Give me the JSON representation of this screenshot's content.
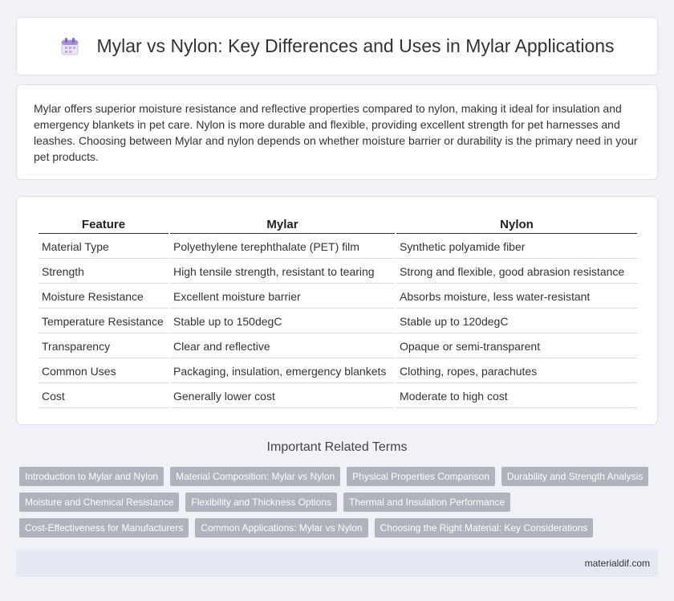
{
  "header": {
    "title": "Mylar vs Nylon: Key Differences and Uses in Mylar Applications",
    "icon": "calendar-icon"
  },
  "intro": {
    "text": "Mylar offers superior moisture resistance and reflective properties compared to nylon, making it ideal for insulation and emergency blankets in pet care. Nylon is more durable and flexible, providing excellent strength for pet harnesses and leashes. Choosing between Mylar and nylon depends on whether moisture barrier or durability is the primary need in your pet products."
  },
  "table": {
    "headers": [
      "Feature",
      "Mylar",
      "Nylon"
    ],
    "rows": [
      [
        "Material Type",
        "Polyethylene terephthalate (PET) film",
        "Synthetic polyamide fiber"
      ],
      [
        "Strength",
        "High tensile strength, resistant to tearing",
        "Strong and flexible, good abrasion resistance"
      ],
      [
        "Moisture Resistance",
        "Excellent moisture barrier",
        "Absorbs moisture, less water-resistant"
      ],
      [
        "Temperature Resistance",
        "Stable up to 150degC",
        "Stable up to 120degC"
      ],
      [
        "Transparency",
        "Clear and reflective",
        "Opaque or semi-transparent"
      ],
      [
        "Common Uses",
        "Packaging, insulation, emergency blankets",
        "Clothing, ropes, parachutes"
      ],
      [
        "Cost",
        "Generally lower cost",
        "Moderate to high cost"
      ]
    ]
  },
  "related": {
    "title": "Important Related Terms",
    "rows": [
      [
        "Introduction to Mylar and Nylon",
        "Material Composition: Mylar vs Nylon",
        "Physical Properties Comparison",
        "Durability and Strength Analysis"
      ],
      [
        "Moisture and Chemical Resistance",
        "Flexibility and Thickness Options",
        "Thermal and Insulation Performance"
      ],
      [
        "Cost-Effectiveness for Manufacturers",
        "Common Applications: Mylar vs Nylon",
        "Choosing the Right Material: Key Considerations"
      ]
    ]
  },
  "footer": {
    "site": "materialdif.com"
  }
}
